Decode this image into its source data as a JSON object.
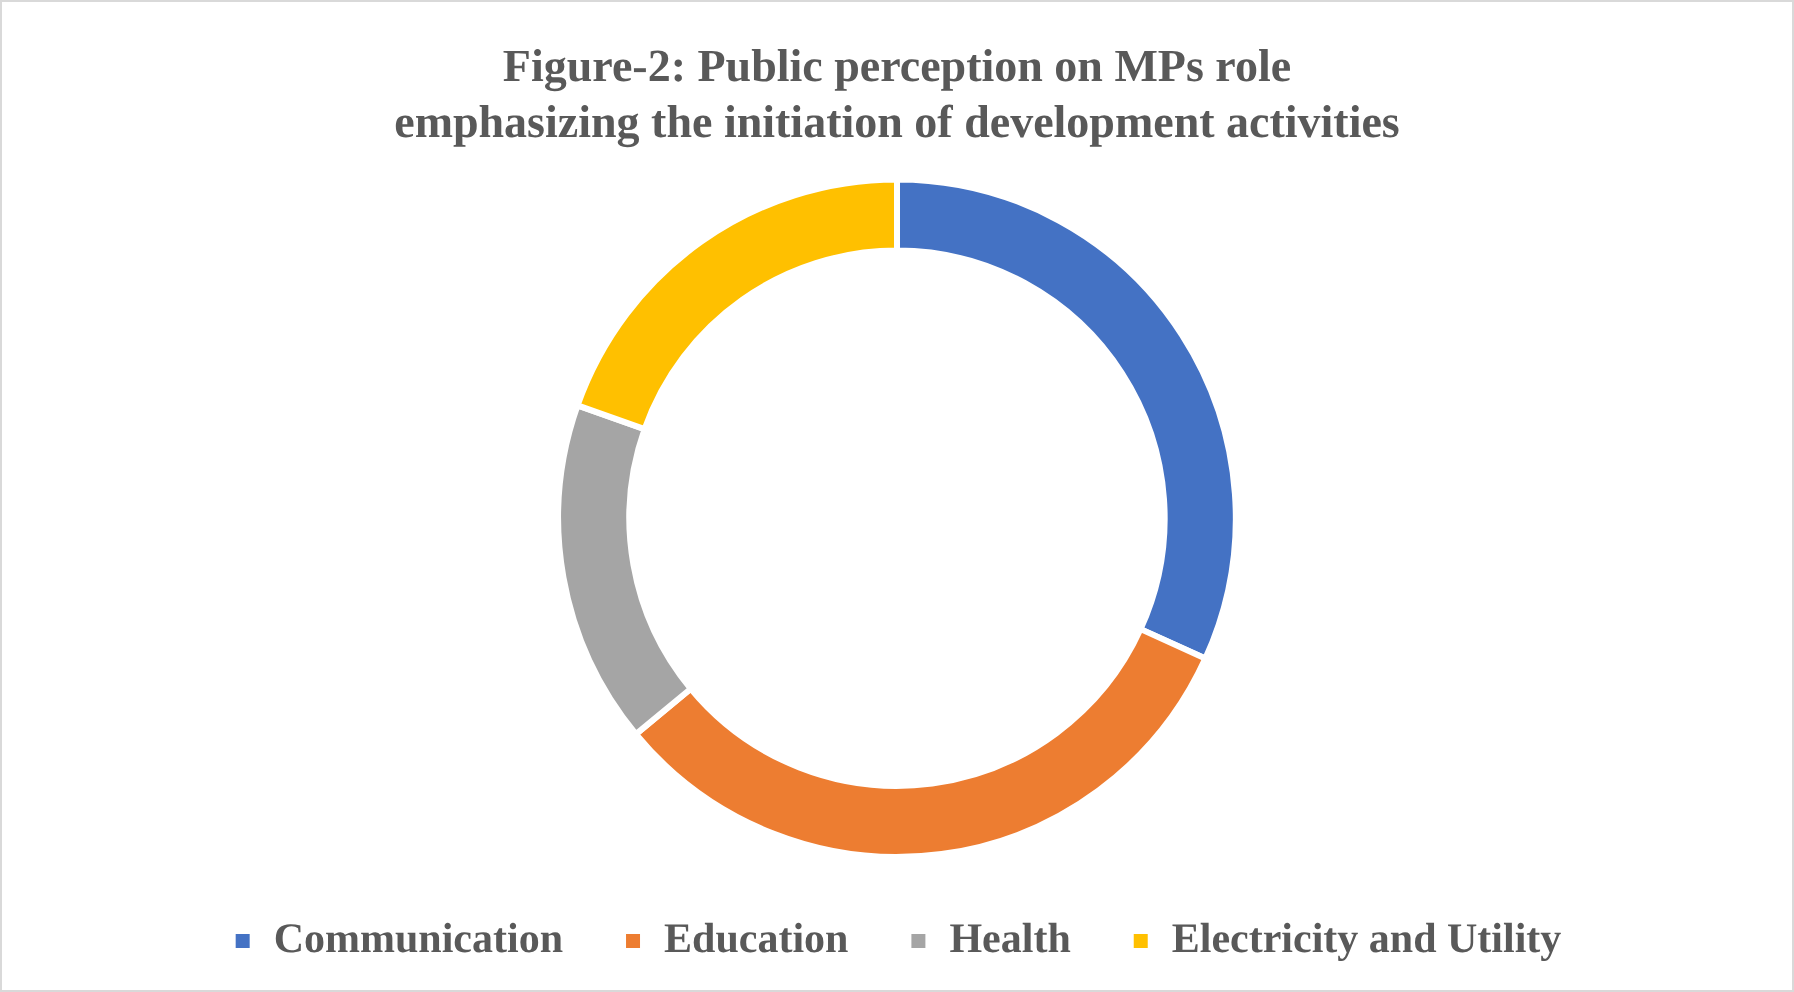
{
  "chart_data": {
    "type": "donut",
    "title": "Figure-2: Public perception on MPs role emphasizing the initiation of development activities",
    "categories": [
      "Communication",
      "Education",
      "Health",
      "Electricity and Utility"
    ],
    "values": [
      31.8,
      32.2,
      16.4,
      19.6
    ],
    "colors": [
      "#4472c4",
      "#ed7d31",
      "#a5a5a5",
      "#ffc000"
    ],
    "legend": "bottom"
  }
}
